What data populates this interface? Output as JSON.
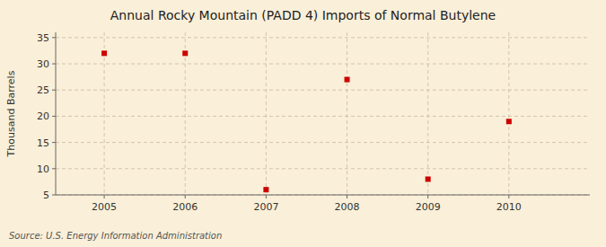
{
  "chart_data": {
    "type": "scatter",
    "title": "Annual Rocky Mountain (PADD 4) Imports of Normal Butylene",
    "y_label": "Thousand Barrels",
    "source": "Source: U.S. Energy Information Administration",
    "x": [
      2005,
      2006,
      2007,
      2008,
      2009,
      2010
    ],
    "values": [
      32,
      32,
      6,
      27,
      8,
      19
    ],
    "color": "#cc0000",
    "marker": "square",
    "xlim": [
      2004.4,
      2011.0
    ],
    "xticks": [
      2005,
      2006,
      2007,
      2008,
      2009,
      2010
    ],
    "ylim": [
      5,
      36
    ],
    "yticks": [
      5,
      10,
      15,
      20,
      25,
      30,
      35
    ],
    "grid": true
  }
}
